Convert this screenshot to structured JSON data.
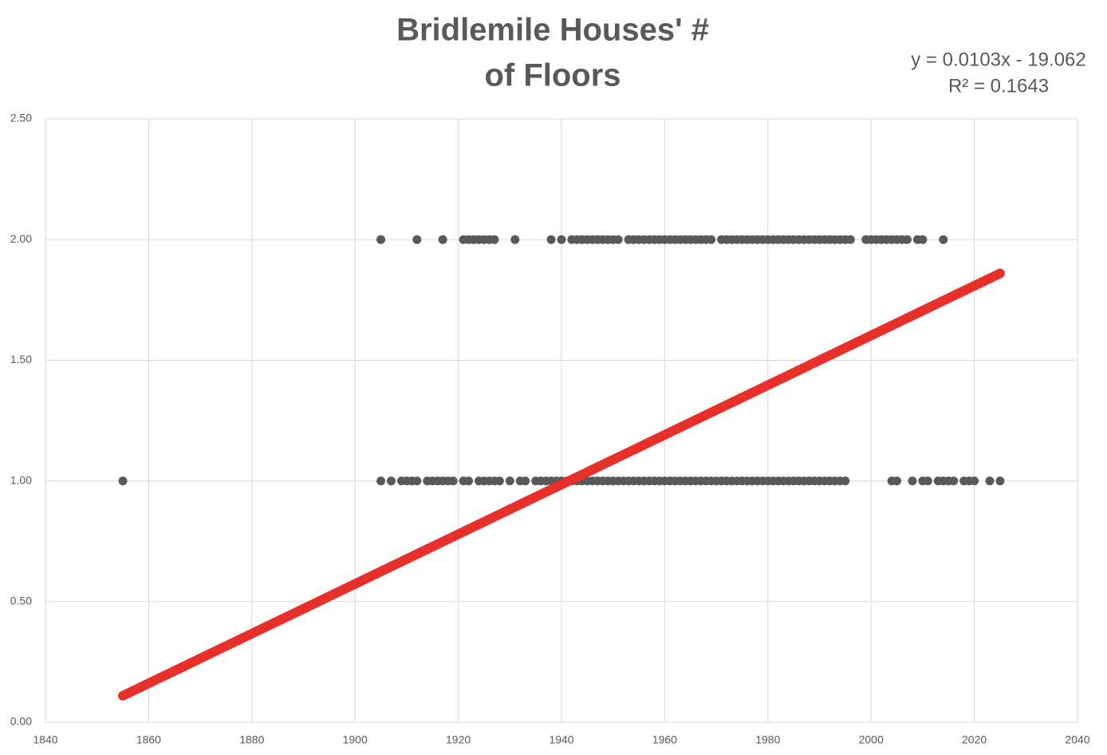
{
  "chart_data": {
    "type": "scatter",
    "title": [
      "Bridlemile Houses' #",
      "of Floors"
    ],
    "annotations": [
      "y = 0.0103x - 19.062",
      "R² = 0.1643"
    ],
    "color": "#595959",
    "x": [
      1905,
      1912,
      1917,
      1921,
      1922,
      1923,
      1924,
      1925,
      1926,
      1927,
      1931,
      1938,
      1940,
      1942,
      1943,
      1944,
      1945,
      1946,
      1947,
      1948,
      1949,
      1950,
      1951,
      1953,
      1954,
      1955,
      1956,
      1957,
      1958,
      1959,
      1960,
      1961,
      1962,
      1963,
      1964,
      1965,
      1966,
      1967,
      1968,
      1969,
      1971,
      1972,
      1973,
      1974,
      1975,
      1976,
      1977,
      1978,
      1979,
      1980,
      1981,
      1982,
      1983,
      1984,
      1985,
      1986,
      1987,
      1988,
      1989,
      1990,
      1991,
      1992,
      1993,
      1994,
      1995,
      1996,
      1999,
      2000,
      2001,
      2002,
      2003,
      2004,
      2005,
      2006,
      2007,
      2009,
      2010,
      2014,
      1855,
      1905,
      1907,
      1909,
      1910,
      1911,
      1912,
      1914,
      1915,
      1916,
      1917,
      1918,
      1919,
      1921,
      1922,
      1924,
      1925,
      1926,
      1927,
      1928,
      1930,
      1932,
      1933,
      1935,
      1936,
      1937,
      1938,
      1939,
      1940,
      1941,
      1942,
      1943,
      1944,
      1945,
      1946,
      1947,
      1948,
      1949,
      1950,
      1951,
      1952,
      1953,
      1954,
      1955,
      1956,
      1957,
      1958,
      1959,
      1960,
      1961,
      1962,
      1963,
      1964,
      1965,
      1966,
      1967,
      1968,
      1969,
      1970,
      1971,
      1972,
      1973,
      1974,
      1975,
      1976,
      1977,
      1978,
      1979,
      1980,
      1981,
      1982,
      1983,
      1984,
      1985,
      1986,
      1987,
      1988,
      1989,
      1990,
      1991,
      1992,
      1993,
      1994,
      1995,
      2004,
      2005,
      2008,
      2010,
      2011,
      2013,
      2014,
      2015,
      2016,
      2018,
      2019,
      2020,
      2023,
      2025
    ],
    "values": [
      2,
      2,
      2,
      2,
      2,
      2,
      2,
      2,
      2,
      2,
      2,
      2,
      2,
      2,
      2,
      2,
      2,
      2,
      2,
      2,
      2,
      2,
      2,
      2,
      2,
      2,
      2,
      2,
      2,
      2,
      2,
      2,
      2,
      2,
      2,
      2,
      2,
      2,
      2,
      2,
      2,
      2,
      2,
      2,
      2,
      2,
      2,
      2,
      2,
      2,
      2,
      2,
      2,
      2,
      2,
      2,
      2,
      2,
      2,
      2,
      2,
      2,
      2,
      2,
      2,
      2,
      2,
      2,
      2,
      2,
      2,
      2,
      2,
      2,
      2,
      2,
      2,
      2,
      1,
      1,
      1,
      1,
      1,
      1,
      1,
      1,
      1,
      1,
      1,
      1,
      1,
      1,
      1,
      1,
      1,
      1,
      1,
      1,
      1,
      1,
      1,
      1,
      1,
      1,
      1,
      1,
      1,
      1,
      1,
      1,
      1,
      1,
      1,
      1,
      1,
      1,
      1,
      1,
      1,
      1,
      1,
      1,
      1,
      1,
      1,
      1,
      1,
      1,
      1,
      1,
      1,
      1,
      1,
      1,
      1,
      1,
      1,
      1,
      1,
      1,
      1,
      1,
      1,
      1,
      1,
      1,
      1,
      1,
      1,
      1,
      1,
      1,
      1,
      1,
      1,
      1,
      1,
      1,
      1,
      1,
      1,
      1,
      1,
      1,
      1,
      1,
      1,
      1,
      1,
      1,
      1,
      1,
      1,
      1,
      1,
      1
    ],
    "trendline": {
      "color": "#e8302a",
      "x": [
        1855,
        2025
      ],
      "y": [
        0.11,
        1.86
      ]
    },
    "xlim": [
      1840,
      2040
    ],
    "xticks": [
      1840,
      1860,
      1880,
      1900,
      1920,
      1940,
      1960,
      1980,
      2000,
      2020,
      2040
    ],
    "ylim": [
      0,
      2.5
    ],
    "yticks": [
      {
        "value": 0,
        "label": "0.00"
      },
      {
        "value": 0.5,
        "label": "0.50"
      },
      {
        "value": 1,
        "label": "1.00"
      },
      {
        "value": 1.5,
        "label": "1.50"
      },
      {
        "value": 2,
        "label": "2.00"
      },
      {
        "value": 2.5,
        "label": "2.50"
      }
    ],
    "grid": true
  }
}
